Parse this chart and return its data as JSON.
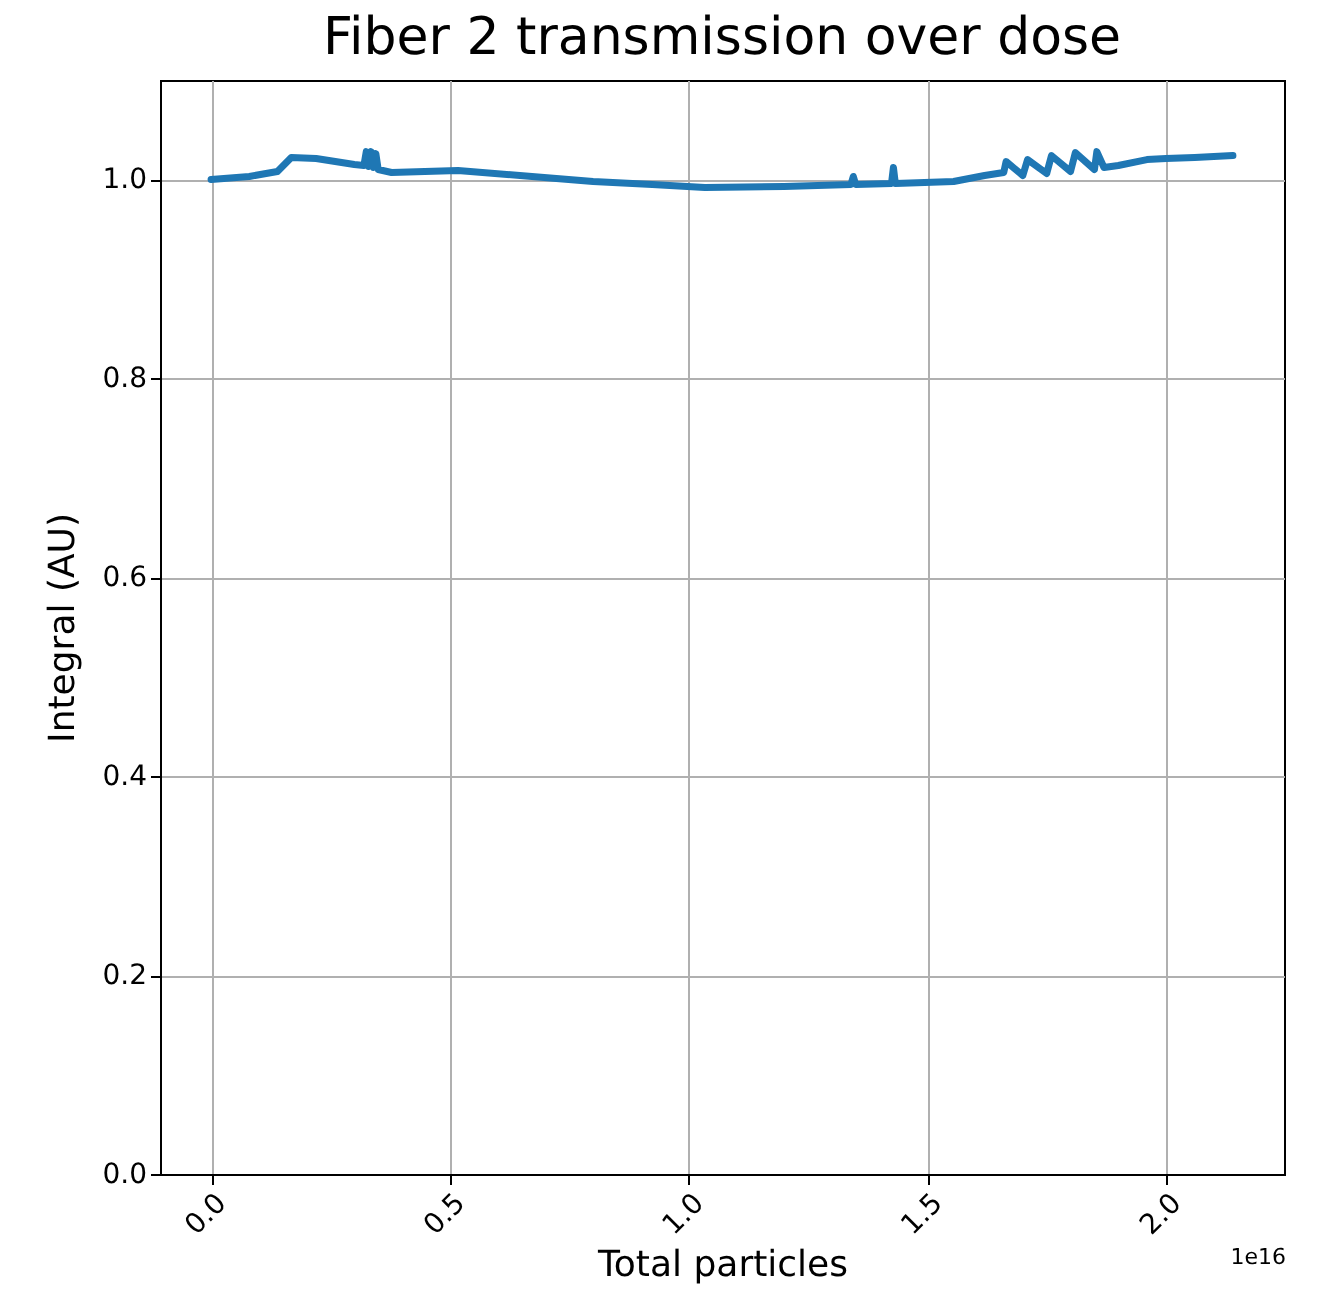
{
  "chart_data": {
    "type": "line",
    "title": "Fiber 2 transmission over dose",
    "xlabel": "Total particles",
    "ylabel": "Integral (AU)",
    "annotations": [
      "1e16"
    ],
    "x": [
      0,
      0.08,
      0.139,
      0.168,
      0.22,
      0.3,
      0.32,
      0.325,
      0.33,
      0.335,
      0.34,
      0.345,
      0.35,
      0.378,
      0.517,
      0.672,
      0.8,
      0.924,
      1.034,
      1.2,
      1.34,
      1.345,
      1.35,
      1.425,
      1.429,
      1.433,
      1.555,
      1.62,
      1.66,
      1.665,
      1.7,
      1.71,
      1.75,
      1.76,
      1.8,
      1.81,
      1.85,
      1.855,
      1.87,
      1.9,
      1.96,
      2.0,
      2.06,
      2.14
    ],
    "series": [
      {
        "color": "#1f77b4",
        "values": [
          1.0,
          1.003,
          1.008,
          1.022,
          1.021,
          1.015,
          1.014,
          1.028,
          1.013,
          1.028,
          1.012,
          1.026,
          1.01,
          1.007,
          1.009,
          1.003,
          0.998,
          0.995,
          0.992,
          0.993,
          0.995,
          1.003,
          0.995,
          0.996,
          1.012,
          0.996,
          0.998,
          1.004,
          1.007,
          1.018,
          1.004,
          1.02,
          1.006,
          1.024,
          1.008,
          1.027,
          1.01,
          1.028,
          1.012,
          1.014,
          1.02,
          1.021,
          1.022,
          1.024
        ]
      }
    ],
    "xlim": [
      -0.107,
      2.247
    ],
    "xticks": [
      {
        "value": 0,
        "label": "0.0"
      },
      0.5,
      {
        "value": 1,
        "label": "1.0"
      },
      1.5,
      {
        "value": 2,
        "label": "2.0"
      }
    ],
    "ylim": [
      0,
      1.1
    ],
    "yticks": [
      {
        "value": 0,
        "label": "0.0"
      },
      0.2,
      0.4,
      0.6,
      0.8,
      {
        "value": 1,
        "label": "1.0"
      }
    ],
    "grid": true
  }
}
